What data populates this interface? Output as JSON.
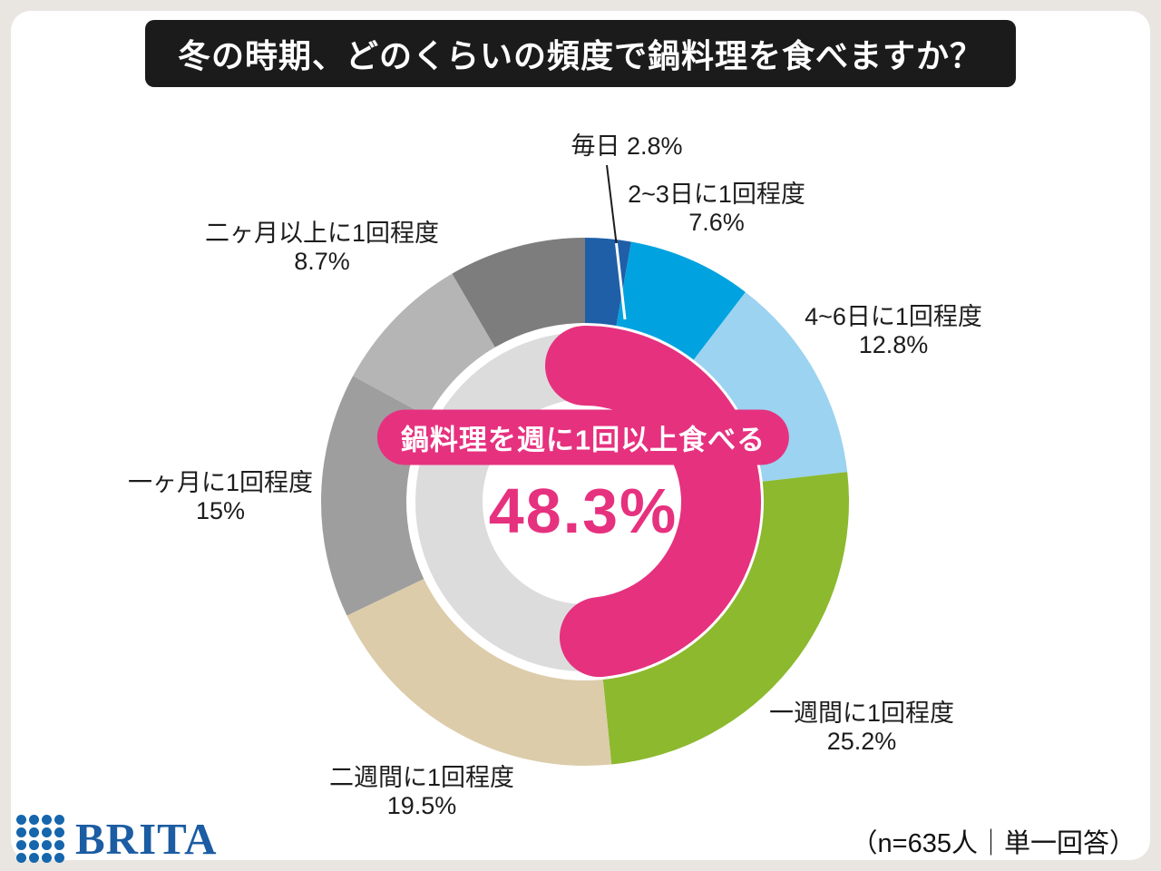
{
  "title": "冬の時期、どのくらいの頻度で鍋料理を食べますか？",
  "footer": {
    "brand": "BRITA",
    "brand_color": "#1b5ca3",
    "note": "（n=635人｜単一回答）"
  },
  "chart_data": {
    "type": "pie",
    "subtype": "double-donut",
    "title": "冬の時期、どのくらいの頻度で鍋料理を食べますか？",
    "units": "percent",
    "legend_position": "around",
    "segments": [
      {
        "label": "毎日",
        "value": 2.8,
        "color": "#1f5fa8",
        "label_lines": [
          "毎日 2.8%"
        ]
      },
      {
        "label": "2~3日に1回程度",
        "value": 7.6,
        "color": "#00a3df",
        "label_lines": [
          "2~3日に1回程度",
          "7.6%"
        ]
      },
      {
        "label": "4~6日に1回程度",
        "value": 12.8,
        "color": "#9cd3f0",
        "label_lines": [
          "4~6日に1回程度",
          "12.8%"
        ]
      },
      {
        "label": "一週間に1回程度",
        "value": 25.2,
        "color": "#8cb92e",
        "label_lines": [
          "一週間に1回程度",
          "25.2%"
        ]
      },
      {
        "label": "二週間に1回程度",
        "value": 19.5,
        "color": "#dcccaa",
        "label_lines": [
          "二週間に1回程度",
          "19.5%"
        ]
      },
      {
        "label": "一ヶ月に1回程度",
        "value": 15,
        "color": "#9e9e9e",
        "label_lines": [
          "一ヶ月に1回程度",
          "15%"
        ]
      },
      {
        "label": "二ヶ月以上に1回程度",
        "value": 8.7,
        "color": "#b5b5b5",
        "label_lines": [
          "二ヶ月以上に1回程度",
          "8.7%"
        ]
      },
      {
        "label": "",
        "value": 8.4,
        "color": "#7d7d7d",
        "label_lines": []
      }
    ],
    "highlight": {
      "label": "鍋料理を週に1回以上食べる",
      "value": 48.3,
      "display": "48.3%",
      "color": "#e6317f",
      "track_color": "#dcdcdc"
    }
  }
}
